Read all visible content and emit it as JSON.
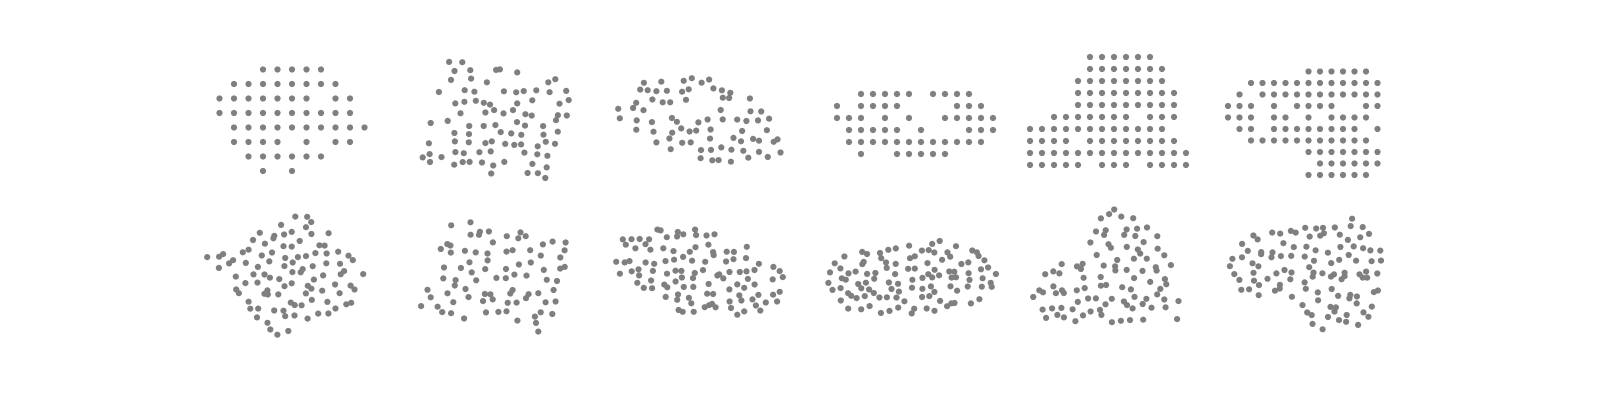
{
  "figure": {
    "description_visible_text": "",
    "dot_color": "#7f7f7f",
    "background_color": "#ffffff",
    "rows": [
      {
        "row_id": "top-row",
        "label": "",
        "panels": [
          {
            "panel_id": "grid-shape-1",
            "label": ""
          },
          {
            "panel_id": "grid-shape-2",
            "label": ""
          },
          {
            "panel_id": "grid-shape-3",
            "label": ""
          },
          {
            "panel_id": "grid-shape-4",
            "label": ""
          },
          {
            "panel_id": "grid-shape-5",
            "label": ""
          },
          {
            "panel_id": "grid-shape-6",
            "label": ""
          }
        ]
      },
      {
        "row_id": "bottom-row",
        "label": "",
        "panels": [
          {
            "panel_id": "scattered-shape-1",
            "label": ""
          },
          {
            "panel_id": "scattered-shape-2",
            "label": ""
          },
          {
            "panel_id": "scattered-shape-3",
            "label": ""
          },
          {
            "panel_id": "scattered-shape-4",
            "label": ""
          },
          {
            "panel_id": "scattered-shape-5",
            "label": ""
          },
          {
            "panel_id": "scattered-shape-6",
            "label": ""
          }
        ]
      }
    ]
  }
}
